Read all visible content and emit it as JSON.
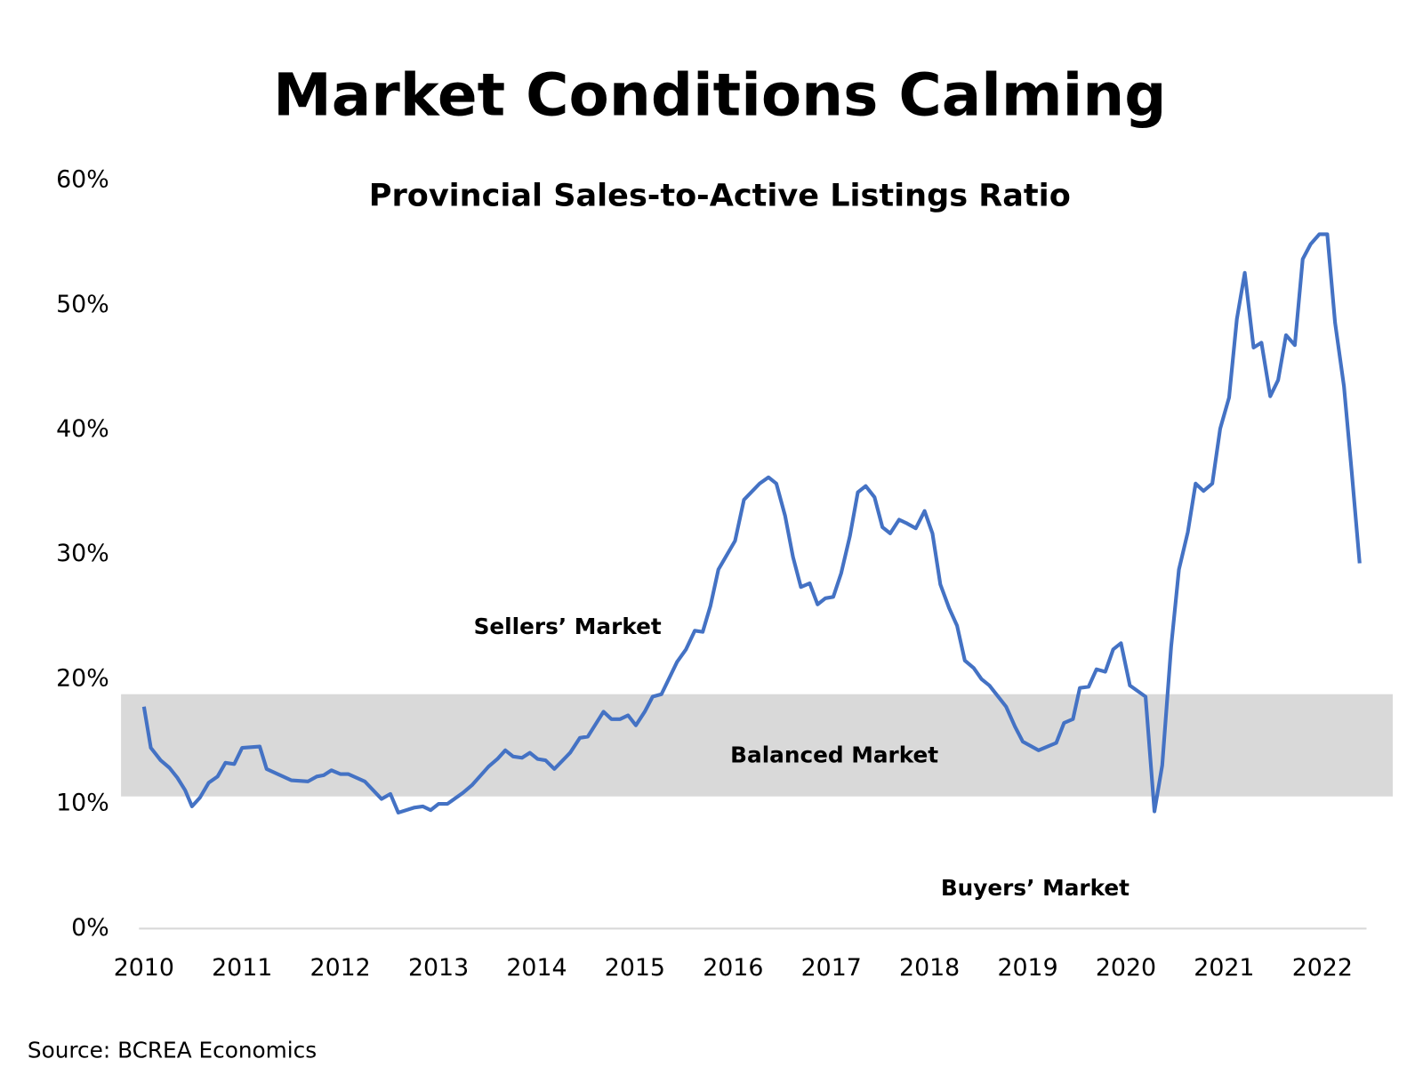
{
  "chart_data": {
    "type": "line",
    "title": "Market Conditions Calming",
    "subtitle": "Provincial Sales-to-Active Listings Ratio",
    "source": "Source: BCREA Economics",
    "annotations": [
      {
        "text": "Sellers’ Market"
      },
      {
        "text": "Balanced Market"
      },
      {
        "text": "Buyers’ Market"
      }
    ],
    "balanced_band": [
      10.6,
      18.8
    ],
    "band_color": "#d9d9d9",
    "xlim": [
      2009.95,
      2022.45
    ],
    "xticks": [
      2010,
      2011,
      2012,
      2013,
      2014,
      2015,
      2016,
      2017,
      2018,
      2019,
      2020,
      2021,
      2022
    ],
    "ylim": [
      0,
      60
    ],
    "yticks": [
      {
        "value": 0,
        "label": "0%"
      },
      {
        "value": 10,
        "label": "10%"
      },
      {
        "value": 20,
        "label": "20%"
      },
      {
        "value": 30,
        "label": "30%"
      },
      {
        "value": 40,
        "label": "40%"
      },
      {
        "value": 50,
        "label": "50%"
      },
      {
        "value": 60,
        "label": "60%"
      }
    ],
    "grid": false,
    "series": [
      {
        "color": "#4472c4",
        "x": [
          2010.0,
          2010.07,
          2010.17,
          2010.26,
          2010.34,
          2010.42,
          2010.49,
          2010.57,
          2010.66,
          2010.75,
          2010.83,
          2010.92,
          2011.0,
          2011.18,
          2011.25,
          2011.5,
          2011.67,
          2011.76,
          2011.83,
          2011.91,
          2012.0,
          2012.08,
          2012.25,
          2012.42,
          2012.51,
          2012.59,
          2012.75,
          2012.84,
          2012.92,
          2013.0,
          2013.09,
          2013.25,
          2013.34,
          2013.51,
          2013.6,
          2013.68,
          2013.76,
          2013.85,
          2013.93,
          2014.01,
          2014.09,
          2014.18,
          2014.34,
          2014.44,
          2014.52,
          2014.68,
          2014.76,
          2014.85,
          2014.93,
          2015.01,
          2015.1,
          2015.18,
          2015.27,
          2015.43,
          2015.52,
          2015.61,
          2015.69,
          2015.77,
          2015.85,
          2016.02,
          2016.11,
          2016.27,
          2016.36,
          2016.44,
          2016.53,
          2016.61,
          2016.69,
          2016.78,
          2016.86,
          2016.94,
          2017.02,
          2017.1,
          2017.19,
          2017.27,
          2017.35,
          2017.44,
          2017.52,
          2017.6,
          2017.69,
          2017.77,
          2017.86,
          2017.95,
          2018.03,
          2018.11,
          2018.2,
          2018.28,
          2018.36,
          2018.45,
          2018.53,
          2018.61,
          2018.78,
          2018.87,
          2018.95,
          2019.11,
          2019.29,
          2019.37,
          2019.46,
          2019.53,
          2019.62,
          2019.7,
          2019.79,
          2019.87,
          2019.95,
          2020.04,
          2020.2,
          2020.29,
          2020.37,
          2020.46,
          2020.54,
          2020.63,
          2020.71,
          2020.79,
          2020.88,
          2020.96,
          2021.05,
          2021.13,
          2021.21,
          2021.3,
          2021.38,
          2021.47,
          2021.55,
          2021.63,
          2021.72,
          2021.8,
          2021.88,
          2021.97,
          2022.05,
          2022.13,
          2022.22,
          2022.3,
          2022.38
        ],
        "values": [
          17.8,
          14.5,
          13.5,
          12.9,
          12.1,
          11.1,
          9.8,
          10.5,
          11.7,
          12.2,
          13.3,
          13.2,
          14.5,
          14.6,
          12.8,
          11.9,
          11.8,
          12.2,
          12.3,
          12.7,
          12.4,
          12.4,
          11.8,
          10.4,
          10.8,
          9.3,
          9.7,
          9.8,
          9.5,
          10.0,
          10.0,
          10.9,
          11.5,
          13.0,
          13.6,
          14.3,
          13.8,
          13.7,
          14.1,
          13.6,
          13.5,
          12.8,
          14.1,
          15.3,
          15.4,
          17.4,
          16.8,
          16.8,
          17.1,
          16.3,
          17.4,
          18.6,
          18.8,
          21.4,
          22.4,
          23.9,
          23.8,
          25.9,
          28.8,
          31.1,
          34.4,
          35.7,
          36.2,
          35.7,
          33.1,
          29.8,
          27.4,
          27.7,
          26.0,
          26.5,
          26.6,
          28.5,
          31.5,
          35.0,
          35.5,
          34.6,
          32.2,
          31.7,
          32.8,
          32.5,
          32.1,
          33.5,
          31.7,
          27.6,
          25.7,
          24.3,
          21.5,
          20.9,
          20.0,
          19.5,
          17.8,
          16.2,
          15.0,
          14.3,
          14.9,
          16.5,
          16.8,
          19.3,
          19.4,
          20.8,
          20.6,
          22.4,
          22.9,
          19.5,
          18.6,
          9.4,
          13.1,
          22.6,
          28.8,
          31.8,
          35.7,
          35.1,
          35.7,
          40.1,
          42.6,
          48.9,
          52.6,
          46.6,
          47.0,
          42.7,
          44.0,
          47.6,
          46.8,
          53.7,
          54.9,
          55.7,
          55.7,
          48.6,
          43.5,
          36.6,
          29.3
        ]
      }
    ]
  }
}
